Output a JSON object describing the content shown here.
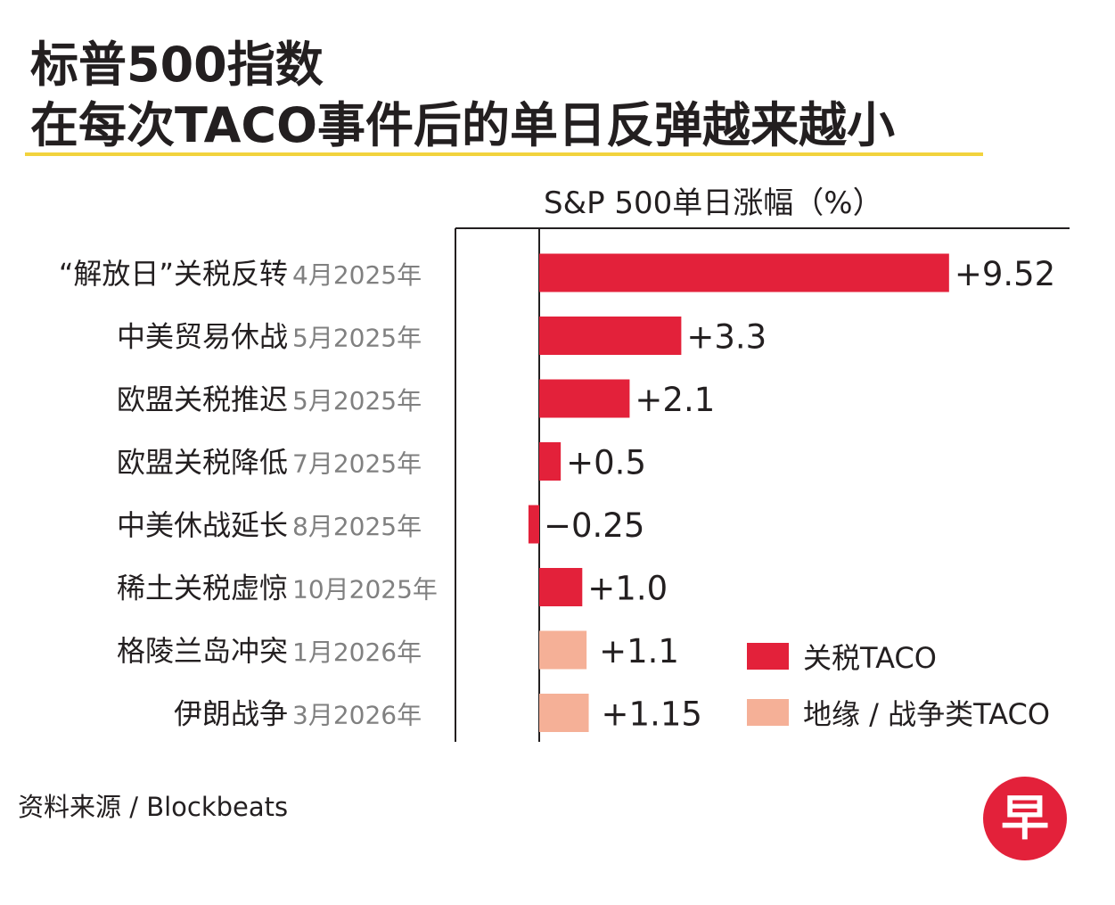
{
  "header": {
    "title_line1": "标普500指数",
    "title_line2": "在每次TACO事件后的单日反弹越来越小"
  },
  "colors": {
    "tariff": "#e3213a",
    "geo": "#f5b097",
    "rule": "#f2d33d",
    "text": "#231f20",
    "date_text": "#808080"
  },
  "chart_data": {
    "type": "bar",
    "orientation": "horizontal",
    "title": "S&P 500单日涨幅（%）",
    "categories": [
      {
        "event": "“解放日”关税反转",
        "date": "4月2025年"
      },
      {
        "event": "中美贸易休战",
        "date": "5月2025年"
      },
      {
        "event": "欧盟关税推迟",
        "date": "5月2025年"
      },
      {
        "event": "欧盟关税降低",
        "date": "7月2025年"
      },
      {
        "event": "中美休战延长",
        "date": "8月2025年"
      },
      {
        "event": "稀土关税虚惊",
        "date": "10月2025年"
      },
      {
        "event": "格陵兰岛冲突",
        "date": "1月2026年"
      },
      {
        "event": "伊朗战争",
        "date": "3月2026年"
      }
    ],
    "values": [
      9.52,
      3.3,
      2.1,
      0.5,
      -0.25,
      1.0,
      1.1,
      1.15
    ],
    "value_labels": [
      "+9.52",
      "+3.3",
      "+2.1",
      "+0.5",
      "−0.25",
      "+1.0",
      "+1.1",
      "+1.15"
    ],
    "types": [
      "tariff",
      "tariff",
      "tariff",
      "tariff",
      "tariff",
      "tariff",
      "geo",
      "geo"
    ],
    "legend": [
      {
        "key": "tariff",
        "label": "关税TACO"
      },
      {
        "key": "geo",
        "label": "地缘 / 战争类TACO"
      }
    ],
    "xlim": [
      -0.25,
      9.52
    ]
  },
  "footer": {
    "source": "资料来源 / Blockbeats",
    "logo_char": "早"
  }
}
